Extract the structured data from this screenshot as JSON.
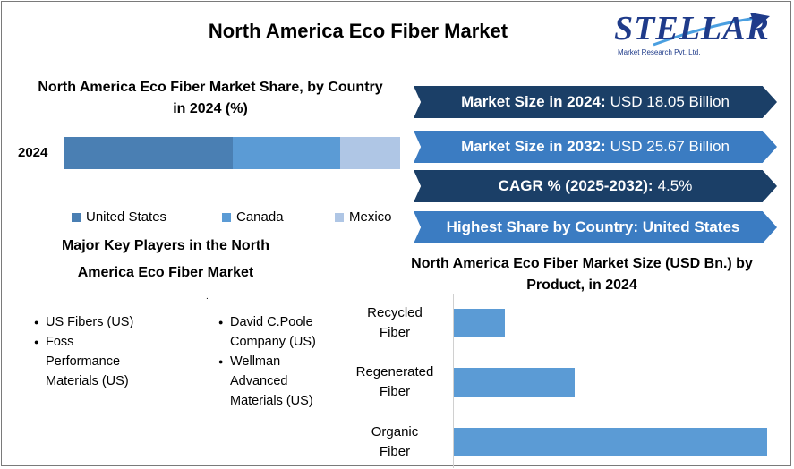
{
  "title": "North America Eco Fiber Market",
  "logo": {
    "word": "STELLAR",
    "subtitle": "Market Research Pvt. Ltd."
  },
  "colors": {
    "dark_navy": "#1b3f67",
    "mid_blue": "#3b7cc2",
    "us": "#4a7fb3",
    "canada": "#5b9bd5",
    "mexico": "#afc6e5"
  },
  "share_chart": {
    "title": "North America Eco Fiber Market Share, by Country in 2024 (%)",
    "category": "2024"
  },
  "banners": [
    {
      "bold": "Market Size in 2024:",
      "text": "USD 18.05 Billion",
      "style": "dark"
    },
    {
      "bold": "Market Size in 2032:",
      "text": "USD 25.67 Billion",
      "style": "light"
    },
    {
      "bold": "CAGR % (2025-2032):",
      "text": "4.5%",
      "style": "dark"
    },
    {
      "bold": "Highest Share by Country: United States",
      "text": "",
      "style": "light"
    }
  ],
  "players": {
    "title": "Major Key Players in the North America Eco Fiber Market",
    "dot": ".",
    "left": [
      "US Fibers (US)",
      "Foss Performance Materials (US)"
    ],
    "right": [
      "David C.Poole Company (US)",
      "Wellman Advanced Materials (US)"
    ]
  },
  "product_chart": {
    "title": "North America Eco Fiber Market Size (USD Bn.) by Product, in 2024"
  },
  "chart_data": [
    {
      "type": "bar",
      "orientation": "horizontal-stacked",
      "title": "North America Eco Fiber Market Share, by Country in 2024 (%)",
      "categories": [
        "2024"
      ],
      "series": [
        {
          "name": "United States",
          "values": [
            50
          ]
        },
        {
          "name": "Canada",
          "values": [
            32
          ]
        },
        {
          "name": "Mexico",
          "values": [
            18
          ]
        }
      ],
      "xlim": [
        0,
        100
      ],
      "legend": "bottom",
      "grid": false
    },
    {
      "type": "bar",
      "orientation": "horizontal",
      "title": "North America Eco Fiber Market Size (USD Bn.) by Product, in 2024",
      "categories": [
        "Recycled Fiber",
        "Regenerated Fiber",
        "Organic Fiber"
      ],
      "values": [
        1.9,
        4.5,
        11.65
      ],
      "xlim": [
        0,
        12
      ],
      "grid": false
    }
  ]
}
